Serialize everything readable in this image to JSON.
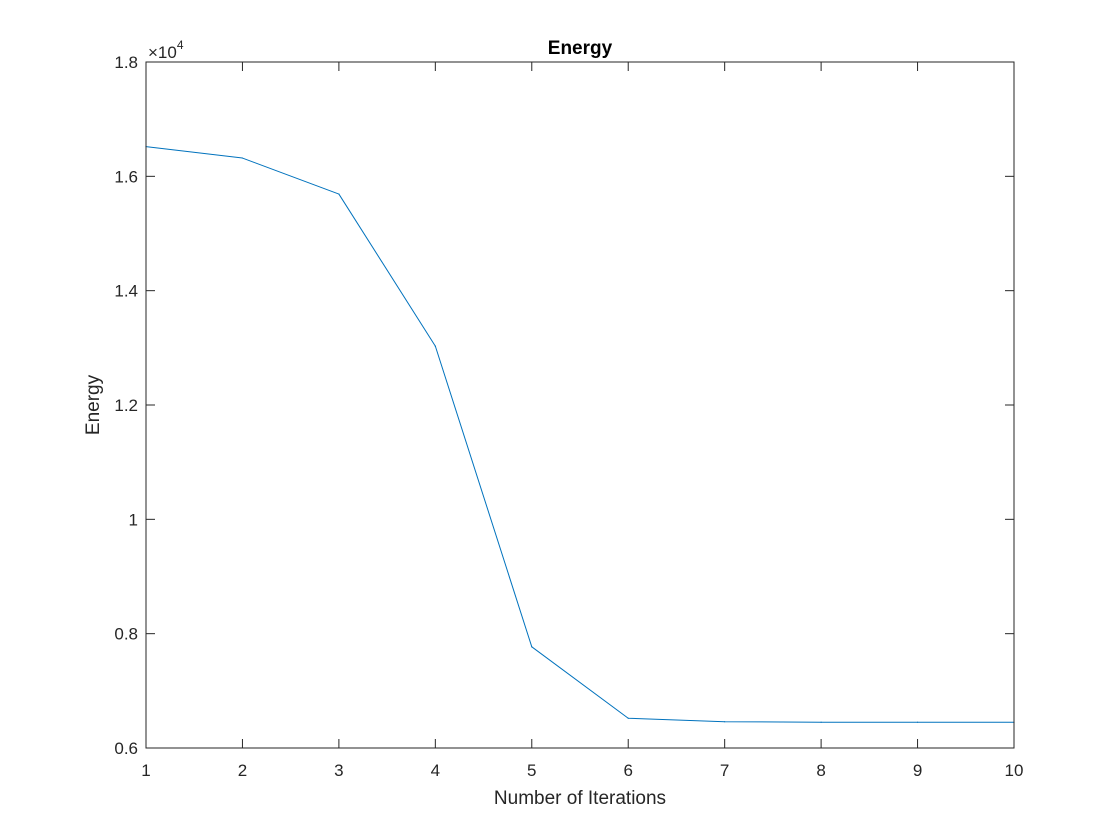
{
  "chart_data": {
    "type": "line",
    "title": "Energy",
    "xlabel": "Number of Iterations",
    "ylabel": "Energy",
    "xlim": [
      1,
      10
    ],
    "ylim": [
      6000,
      18000
    ],
    "x_ticks": [
      1,
      2,
      3,
      4,
      5,
      6,
      7,
      8,
      9,
      10
    ],
    "x_tick_labels": [
      "1",
      "2",
      "3",
      "4",
      "5",
      "6",
      "7",
      "8",
      "9",
      "10"
    ],
    "y_ticks": [
      6000,
      8000,
      10000,
      12000,
      14000,
      16000,
      18000
    ],
    "y_tick_labels": [
      "0.6",
      "0.8",
      "1",
      "1.2",
      "1.4",
      "1.6",
      "1.8"
    ],
    "y_multiplier_base": "×10",
    "y_multiplier_exponent": "4",
    "grid": false,
    "series": [
      {
        "color": "#0072bd",
        "x": [
          1,
          2,
          3,
          4,
          5,
          6,
          7,
          8,
          9,
          10
        ],
        "y": [
          16520,
          16320,
          15690,
          13030,
          7770,
          6520,
          6460,
          6450,
          6450,
          6450
        ]
      }
    ]
  }
}
